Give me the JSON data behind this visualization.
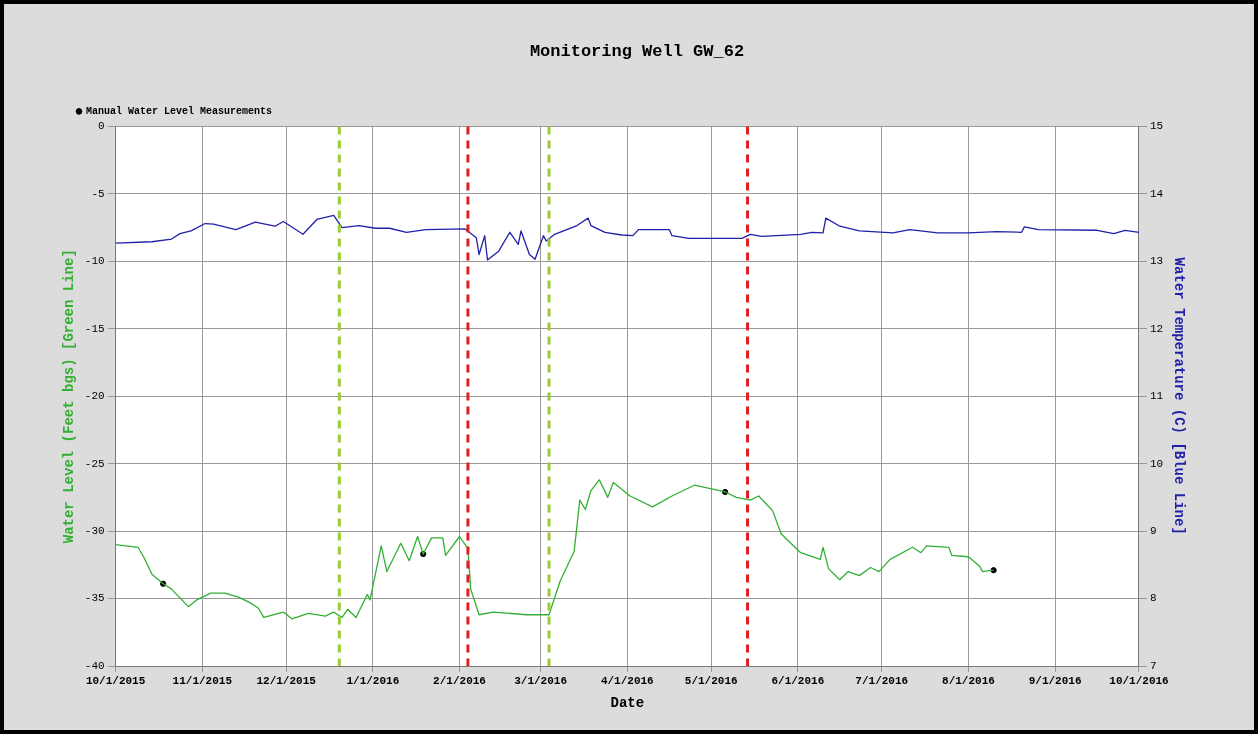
{
  "chart_data": {
    "type": "line",
    "title": "Monitoring Well GW_62",
    "xlabel": "Date",
    "ylabel": "Water Level (Feet bgs) [Green Line]",
    "y2label": "Water Temperature (C) [Blue Line]",
    "xlim": [
      "2015-10-01",
      "2016-10-01"
    ],
    "xticks": [
      {
        "value": "2015-10-01",
        "label": "10/1/2015"
      },
      {
        "value": "2015-11-01",
        "label": "11/1/2015"
      },
      {
        "value": "2015-12-01",
        "label": "12/1/2015"
      },
      {
        "value": "2016-01-01",
        "label": "1/1/2016"
      },
      {
        "value": "2016-02-01",
        "label": "2/1/2016"
      },
      {
        "value": "2016-03-01",
        "label": "3/1/2016"
      },
      {
        "value": "2016-04-01",
        "label": "4/1/2016"
      },
      {
        "value": "2016-05-01",
        "label": "5/1/2016"
      },
      {
        "value": "2016-06-01",
        "label": "6/1/2016"
      },
      {
        "value": "2016-07-01",
        "label": "7/1/2016"
      },
      {
        "value": "2016-08-01",
        "label": "8/1/2016"
      },
      {
        "value": "2016-09-01",
        "label": "9/1/2016"
      },
      {
        "value": "2016-10-01",
        "label": "10/1/2016"
      }
    ],
    "ylim": [
      -40,
      0
    ],
    "yticks": [
      -40,
      -35,
      -30,
      -25,
      -20,
      -15,
      -10,
      -5,
      0
    ],
    "y2lim": [
      7,
      15
    ],
    "y2ticks": [
      7,
      8,
      9,
      10,
      11,
      12,
      13,
      14,
      15
    ],
    "grid": true,
    "legend": "top left",
    "series": [
      {
        "color": "#33b033",
        "axis": "y",
        "x": [
          "2015-10-01",
          "2015-10-09",
          "2015-10-11",
          "2015-10-14",
          "2015-10-18",
          "2015-10-21",
          "2015-10-27",
          "2015-10-30",
          "2015-11-04",
          "2015-11-09",
          "2015-11-14",
          "2015-11-18",
          "2015-11-21",
          "2015-11-23",
          "2015-11-30",
          "2015-12-03",
          "2015-12-09",
          "2015-12-15",
          "2015-12-18",
          "2015-12-21",
          "2015-12-23",
          "2015-12-26",
          "2015-12-30",
          "2015-12-31",
          "2016-01-04",
          "2016-01-06",
          "2016-01-11",
          "2016-01-14",
          "2016-01-17",
          "2016-01-19",
          "2016-01-22",
          "2016-01-26",
          "2016-01-27",
          "2016-02-01",
          "2016-02-04",
          "2016-02-05",
          "2016-02-08",
          "2016-02-13",
          "2016-02-25",
          "2016-03-04",
          "2016-03-08",
          "2016-03-13",
          "2016-03-15",
          "2016-03-17",
          "2016-03-19",
          "2016-03-22",
          "2016-03-25",
          "2016-03-27",
          "2016-04-02",
          "2016-04-10",
          "2016-04-17",
          "2016-04-25",
          "2016-05-02",
          "2016-05-06",
          "2016-05-10",
          "2016-05-15",
          "2016-05-18",
          "2016-05-23",
          "2016-05-26",
          "2016-06-02",
          "2016-06-09",
          "2016-06-10",
          "2016-06-12",
          "2016-06-16",
          "2016-06-19",
          "2016-06-23",
          "2016-06-27",
          "2016-06-30",
          "2016-07-04",
          "2016-07-12",
          "2016-07-15",
          "2016-07-17",
          "2016-07-25",
          "2016-07-26",
          "2016-08-01",
          "2016-08-05",
          "2016-08-06",
          "2016-08-10"
        ],
        "values": [
          -31.0,
          -31.2,
          -31.9,
          -33.2,
          -33.9,
          -34.3,
          -35.6,
          -35.1,
          -34.6,
          -34.6,
          -34.9,
          -35.3,
          -35.7,
          -36.4,
          -36.0,
          -36.5,
          -36.1,
          -36.3,
          -36.0,
          -36.4,
          -35.8,
          -36.4,
          -34.7,
          -35.1,
          -31.1,
          -33.0,
          -30.9,
          -32.2,
          -30.4,
          -31.7,
          -30.5,
          -30.5,
          -31.8,
          -30.4,
          -31.3,
          -34.3,
          -36.2,
          -36.0,
          -36.2,
          -36.2,
          -33.7,
          -31.5,
          -27.7,
          -28.4,
          -27.0,
          -26.2,
          -27.5,
          -26.4,
          -27.4,
          -28.2,
          -27.4,
          -26.6,
          -26.9,
          -27.1,
          -27.5,
          -27.7,
          -27.4,
          -28.5,
          -30.2,
          -31.6,
          -32.1,
          -31.2,
          -32.8,
          -33.6,
          -33.0,
          -33.3,
          -32.7,
          -33.0,
          -32.1,
          -31.2,
          -31.6,
          -31.1,
          -31.2,
          -31.8,
          -31.9,
          -32.6,
          -33.0,
          -32.9
        ]
      },
      {
        "color": "#2020a8",
        "axis": "y2",
        "x": [
          "2015-10-01",
          "2015-10-14",
          "2015-10-21",
          "2015-10-24",
          "2015-10-28",
          "2015-11-02",
          "2015-11-05",
          "2015-11-13",
          "2015-11-20",
          "2015-11-27",
          "2015-11-30",
          "2015-12-07",
          "2015-12-12",
          "2015-12-18",
          "2015-12-21",
          "2015-12-27",
          "2016-01-02",
          "2016-01-07",
          "2016-01-13",
          "2016-01-20",
          "2016-02-03",
          "2016-02-07",
          "2016-02-08",
          "2016-02-10",
          "2016-02-11",
          "2016-02-15",
          "2016-02-19",
          "2016-02-22",
          "2016-02-23",
          "2016-02-26",
          "2016-02-28",
          "2016-03-02",
          "2016-03-03",
          "2016-03-06",
          "2016-03-14",
          "2016-03-18",
          "2016-03-19",
          "2016-03-24",
          "2016-03-30",
          "2016-04-03",
          "2016-04-05",
          "2016-04-16",
          "2016-04-17",
          "2016-04-23",
          "2016-05-06",
          "2016-05-12",
          "2016-05-15",
          "2016-05-19",
          "2016-06-02",
          "2016-06-06",
          "2016-06-10",
          "2016-06-11",
          "2016-06-16",
          "2016-06-23",
          "2016-07-05",
          "2016-07-11",
          "2016-07-21",
          "2016-08-01",
          "2016-08-11",
          "2016-08-20",
          "2016-08-21",
          "2016-08-26",
          "2016-09-16",
          "2016-09-22",
          "2016-09-26",
          "2016-10-01"
        ],
        "values": [
          13.27,
          13.29,
          13.33,
          13.41,
          13.45,
          13.56,
          13.55,
          13.47,
          13.58,
          13.52,
          13.59,
          13.4,
          13.62,
          13.68,
          13.5,
          13.53,
          13.49,
          13.49,
          13.43,
          13.47,
          13.48,
          13.35,
          13.1,
          13.38,
          13.02,
          13.15,
          13.43,
          13.25,
          13.45,
          13.1,
          13.03,
          13.38,
          13.3,
          13.4,
          13.53,
          13.64,
          13.53,
          13.43,
          13.39,
          13.38,
          13.47,
          13.47,
          13.38,
          13.34,
          13.34,
          13.34,
          13.4,
          13.37,
          13.4,
          13.43,
          13.42,
          13.64,
          13.52,
          13.45,
          13.42,
          13.47,
          13.42,
          13.42,
          13.44,
          13.43,
          13.51,
          13.47,
          13.46,
          13.41,
          13.46,
          13.43
        ]
      },
      {
        "type": "scatter",
        "name": "Manual Water Level Measurements",
        "color": "#000000",
        "axis": "y",
        "marker": "circle",
        "x": [
          "2015-10-18",
          "2016-01-19",
          "2016-05-06",
          "2016-08-10"
        ],
        "values": [
          -33.9,
          -31.7,
          -27.1,
          -32.9
        ]
      }
    ],
    "ref_lines": [
      {
        "axis": "x",
        "value": "2015-12-20",
        "color": "#99cc33",
        "line_style": "dashed"
      },
      {
        "axis": "x",
        "value": "2016-02-04",
        "color": "#e02020",
        "line_style": "dashed"
      },
      {
        "axis": "x",
        "value": "2016-03-04",
        "color": "#99cc33",
        "line_style": "dashed"
      },
      {
        "axis": "x",
        "value": "2016-05-14",
        "color": "#e02020",
        "line_style": "dashed"
      }
    ]
  }
}
